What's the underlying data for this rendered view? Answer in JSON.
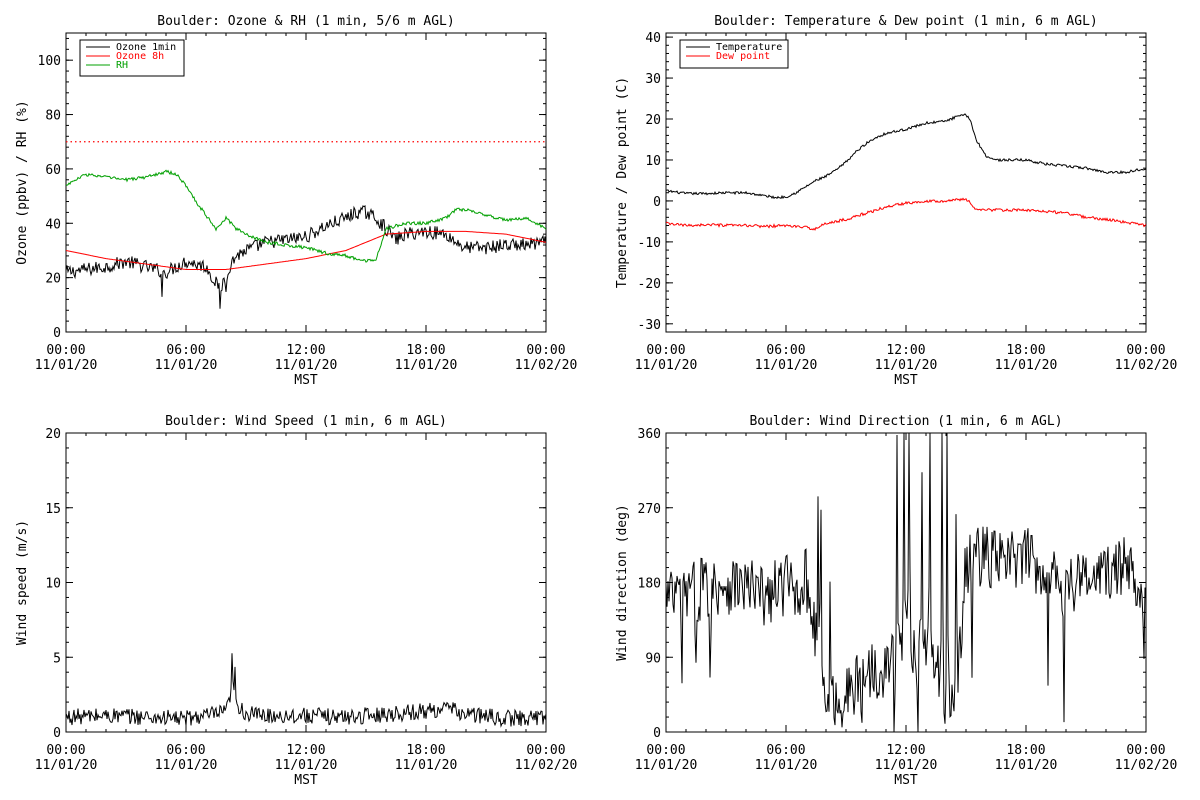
{
  "chart_data": [
    {
      "type": "line",
      "title": "Boulder: Ozone & RH (1 min, 5/6 m AGL)",
      "xlabel": "MST",
      "ylabel": "Ozone (ppbv) / RH (%)",
      "ylim": [
        0,
        110
      ],
      "yticks": [
        0,
        20,
        40,
        60,
        80,
        100
      ],
      "xlim": [
        0,
        24
      ],
      "xticks": [
        {
          "line1": "00:00",
          "line2": "11/01/20"
        },
        {
          "line1": "06:00",
          "line2": "11/01/20"
        },
        {
          "line1": "12:00",
          "line2": "11/01/20"
        },
        {
          "line1": "18:00",
          "line2": "11/01/20"
        },
        {
          "line1": "00:00",
          "line2": "11/02/20"
        }
      ],
      "legend": "top-left",
      "reference_line": {
        "y": 70,
        "style": "dotted",
        "color": "#ff0000"
      },
      "series": [
        {
          "name": "Ozone 1min",
          "color": "#000000",
          "noise": 2.5,
          "spikes": [
            [
              4.8,
              -8
            ],
            [
              7.7,
              -11
            ],
            [
              8.0,
              -8
            ]
          ],
          "x": [
            0,
            1,
            2,
            3,
            4,
            5,
            5.5,
            6,
            6.5,
            7,
            7.5,
            7.8,
            8,
            8.5,
            9,
            10,
            11,
            12,
            13,
            14,
            14.5,
            15,
            15.5,
            16,
            16.5,
            17,
            18,
            19,
            19.5,
            20,
            21,
            22,
            23,
            24
          ],
          "y": [
            22,
            23,
            24,
            26,
            24,
            22,
            24,
            26,
            25,
            24,
            18,
            17,
            22,
            28,
            30,
            33,
            34,
            35,
            39,
            42,
            44,
            44,
            42,
            38,
            34,
            36,
            37,
            36,
            33,
            31,
            31,
            32,
            32,
            33
          ]
        },
        {
          "name": "Ozone 8h",
          "color": "#ff0000",
          "noise": 0,
          "x": [
            0,
            2,
            4,
            6,
            8,
            10,
            12,
            14,
            16,
            18,
            20,
            22,
            24
          ],
          "y": [
            30,
            27,
            25,
            23,
            23,
            25,
            27,
            30,
            36,
            37,
            37,
            36,
            33
          ]
        },
        {
          "name": "RH",
          "color": "#00a000",
          "noise": 0.6,
          "x": [
            0,
            0.5,
            1,
            2,
            3,
            4,
            5,
            5.5,
            6,
            6.5,
            7,
            7.5,
            8,
            8.5,
            9,
            10,
            11,
            12,
            13,
            14,
            15,
            15.5,
            16,
            17,
            18,
            19,
            19.5,
            20,
            21,
            22,
            23,
            24
          ],
          "y": [
            54,
            56,
            58,
            57,
            56,
            57,
            59,
            58,
            54,
            48,
            43,
            38,
            42,
            38,
            36,
            33,
            32,
            31,
            29,
            28,
            26,
            27,
            38,
            40,
            40,
            42,
            45,
            45,
            43,
            41,
            42,
            38
          ]
        }
      ]
    },
    {
      "type": "line",
      "title": "Boulder: Temperature & Dew point (1 min, 6 m AGL)",
      "xlabel": "MST",
      "ylabel": "Temperature / Dew point (C)",
      "ylim": [
        -32,
        41
      ],
      "yticks": [
        -30,
        -20,
        -10,
        0,
        10,
        20,
        30,
        40
      ],
      "xlim": [
        0,
        24
      ],
      "xticks": [
        {
          "line1": "00:00",
          "line2": "11/01/20"
        },
        {
          "line1": "06:00",
          "line2": "11/01/20"
        },
        {
          "line1": "12:00",
          "line2": "11/01/20"
        },
        {
          "line1": "18:00",
          "line2": "11/01/20"
        },
        {
          "line1": "00:00",
          "line2": "11/02/20"
        }
      ],
      "legend": "top-left",
      "series": [
        {
          "name": "Temperature",
          "color": "#000000",
          "noise": 0.3,
          "x": [
            0,
            1,
            2,
            3,
            4,
            5,
            5.5,
            6,
            6.5,
            7,
            7.5,
            8,
            8.5,
            9,
            9.5,
            10,
            10.5,
            11,
            12,
            13,
            14,
            14.5,
            15,
            15.2,
            15.5,
            16,
            16.5,
            17,
            18,
            19,
            20,
            21,
            22,
            23,
            24
          ],
          "y": [
            2.5,
            1.8,
            1.8,
            2.0,
            2.0,
            1.2,
            0.8,
            1.0,
            2.0,
            3.5,
            5.0,
            6.0,
            7.5,
            9.5,
            12,
            14,
            15.5,
            16.5,
            17.5,
            19,
            19.5,
            20.5,
            21,
            20,
            15,
            11,
            10,
            10,
            10,
            9,
            8.5,
            8,
            7,
            7,
            8
          ]
        },
        {
          "name": "Dew point",
          "color": "#ff0000",
          "noise": 0.35,
          "x": [
            0,
            1,
            2,
            3,
            4,
            5,
            6,
            7,
            7.5,
            8,
            9,
            10,
            11,
            12,
            13,
            14,
            15,
            15.5,
            16,
            17,
            18,
            19,
            20,
            21,
            22,
            23,
            24
          ],
          "y": [
            -5.5,
            -6,
            -5.8,
            -6,
            -6,
            -6.2,
            -6,
            -6.5,
            -6.8,
            -5.5,
            -4.5,
            -3,
            -1.5,
            -0.5,
            0,
            0,
            0.5,
            -2,
            -2.2,
            -2.2,
            -2.3,
            -2.5,
            -3,
            -4,
            -4.5,
            -5.2,
            -6
          ]
        }
      ]
    },
    {
      "type": "line",
      "title": "Boulder: Wind Speed (1 min, 6 m AGL)",
      "xlabel": "MST",
      "ylabel": "Wind speed (m/s)",
      "ylim": [
        0,
        20
      ],
      "yticks": [
        0,
        5,
        10,
        15,
        20
      ],
      "xlim": [
        0,
        24
      ],
      "xticks": [
        {
          "line1": "00:00",
          "line2": "11/01/20"
        },
        {
          "line1": "06:00",
          "line2": "11/01/20"
        },
        {
          "line1": "12:00",
          "line2": "11/01/20"
        },
        {
          "line1": "18:00",
          "line2": "11/01/20"
        },
        {
          "line1": "00:00",
          "line2": "11/02/20"
        }
      ],
      "series": [
        {
          "color": "#000000",
          "noise": 0.55,
          "spikes": [
            [
              8.3,
              2.2
            ],
            [
              8.45,
              1.6
            ]
          ],
          "x": [
            0,
            2,
            4,
            6,
            8,
            8.3,
            8.6,
            9,
            10,
            12,
            14,
            16,
            18,
            19,
            20,
            22,
            24
          ],
          "y": [
            1.0,
            1.1,
            1.0,
            0.9,
            1.3,
            2.8,
            1.8,
            1.2,
            1.1,
            1.1,
            1.0,
            1.2,
            1.4,
            1.6,
            1.2,
            0.9,
            1.0
          ]
        }
      ]
    },
    {
      "type": "line",
      "title": "Boulder: Wind Direction (1 min, 6 m AGL)",
      "xlabel": "MST",
      "ylabel": "Wind direction (deg)",
      "ylim": [
        0,
        360
      ],
      "yticks": [
        0,
        90,
        180,
        270,
        360
      ],
      "xlim": [
        0,
        24
      ],
      "xticks": [
        {
          "line1": "00:00",
          "line2": "11/01/20"
        },
        {
          "line1": "06:00",
          "line2": "11/01/20"
        },
        {
          "line1": "12:00",
          "line2": "11/01/20"
        },
        {
          "line1": "18:00",
          "line2": "11/01/20"
        },
        {
          "line1": "00:00",
          "line2": "11/02/20"
        }
      ],
      "series": [
        {
          "color": "#000000",
          "noise": 38,
          "spikes": [
            [
              0.8,
              -100
            ],
            [
              1.5,
              -120
            ],
            [
              1.8,
              40
            ],
            [
              2.2,
              -130
            ],
            [
              7.6,
              170
            ],
            [
              7.75,
              180
            ],
            [
              8.05,
              -40
            ],
            [
              8.2,
              120
            ],
            [
              9.8,
              -60
            ],
            [
              11.4,
              -60
            ],
            [
              11.55,
              300
            ],
            [
              11.9,
              330
            ],
            [
              12.15,
              300
            ],
            [
              12.6,
              -100
            ],
            [
              12.8,
              230
            ],
            [
              13.2,
              320
            ],
            [
              13.8,
              290
            ],
            [
              14.05,
              330
            ],
            [
              14.5,
              260
            ],
            [
              15.3,
              -120
            ],
            [
              19.1,
              -110
            ],
            [
              19.9,
              -140
            ],
            [
              23.9,
              -60
            ]
          ],
          "x": [
            0,
            1,
            2,
            3,
            4,
            5,
            6,
            6.5,
            7,
            7.5,
            8,
            8.5,
            9,
            9.5,
            10,
            11,
            11.5,
            12,
            12.5,
            13,
            13.5,
            14,
            14.5,
            15,
            15.5,
            16,
            17,
            18,
            19,
            20,
            21,
            22,
            23,
            24
          ],
          "y": [
            160,
            165,
            175,
            180,
            175,
            160,
            180,
            170,
            185,
            120,
            40,
            35,
            45,
            55,
            75,
            80,
            90,
            120,
            100,
            110,
            75,
            40,
            35,
            200,
            215,
            210,
            205,
            210,
            195,
            180,
            185,
            190,
            200,
            170
          ]
        }
      ]
    }
  ]
}
